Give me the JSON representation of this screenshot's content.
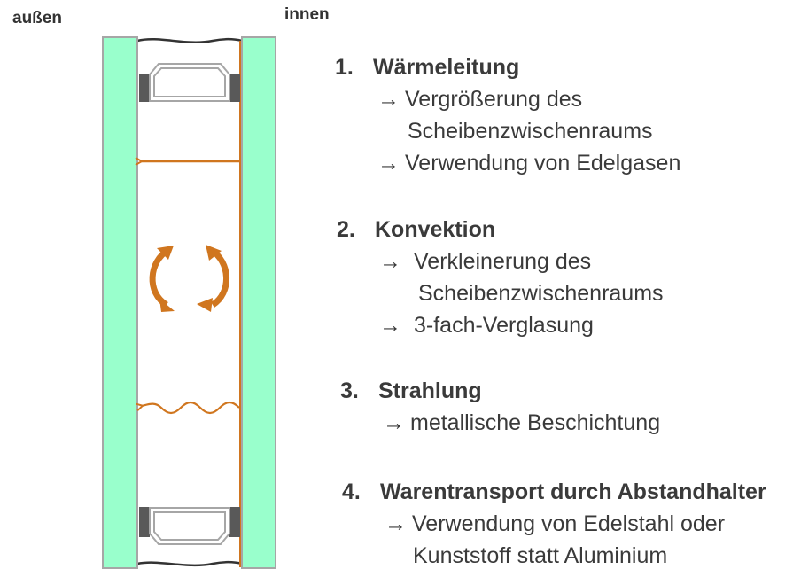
{
  "labels": {
    "outside": "außen",
    "inside": "innen"
  },
  "colors": {
    "glass": "#99ffcc",
    "glass_border": "#a6a6a6",
    "arrow": "#d0761f",
    "spacer_dark": "#595959",
    "spacer_frame": "#a6a6a6"
  },
  "items": [
    {
      "num": "1.",
      "title": "Wärmeleitung",
      "lines": [
        "Vergrößerung des",
        "Scheibenzwischenraums",
        "Verwendung von Edelgasen"
      ]
    },
    {
      "num": "2.",
      "title": "Konvektion",
      "lines": [
        "Verkleinerung des",
        "Scheibenzwischenraums",
        "3-fach-Verglasung"
      ]
    },
    {
      "num": "3.",
      "title": "Strahlung",
      "lines": [
        "metallische Beschichtung"
      ]
    },
    {
      "num": "4.",
      "title": "Warentransport durch Abstandhalter",
      "lines": [
        "Verwendung von Edelstahl oder",
        "Kunststoff statt Aluminium"
      ]
    }
  ],
  "arrow_glyph": "→"
}
